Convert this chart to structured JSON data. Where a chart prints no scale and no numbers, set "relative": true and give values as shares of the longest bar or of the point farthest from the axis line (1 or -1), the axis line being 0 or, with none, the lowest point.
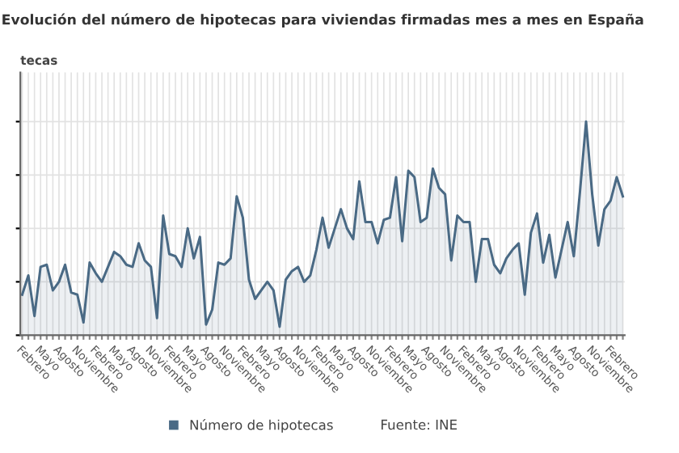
{
  "chart_data": {
    "type": "area",
    "title": "Evolución del número de hipotecas para viviendas firmadas mes a mes en España",
    "ylabel": "tecas",
    "relative": true,
    "grid": true,
    "legend": "bottom",
    "annotations": [
      "Fuente: INE"
    ],
    "categories": [
      "Febrero",
      null,
      null,
      "Mayo",
      null,
      null,
      "Agosto",
      null,
      null,
      "Noviembre",
      null,
      null,
      "Febrero",
      null,
      null,
      "Mayo",
      null,
      null,
      "Agosto",
      null,
      null,
      "Noviembre",
      null,
      null,
      "Febrero",
      null,
      null,
      "Mayo",
      null,
      null,
      "Agosto",
      null,
      null,
      "Noviembre",
      null,
      null,
      "Febrero",
      null,
      null,
      "Mayo",
      null,
      null,
      "Agosto",
      null,
      null,
      "Noviembre",
      null,
      null,
      "Febrero",
      null,
      null,
      "Mayo",
      null,
      null,
      "Agosto",
      null,
      null,
      "Noviembre",
      null,
      null,
      "Febrero",
      null,
      null,
      "Mayo",
      null,
      null,
      "Agosto",
      null,
      null,
      "Noviembre",
      null,
      null,
      "Febrero",
      null,
      null,
      "Mayo",
      null,
      null,
      "Agosto",
      null,
      null,
      "Noviembre",
      null,
      null,
      "Febrero",
      null,
      null,
      "Mayo",
      null,
      null,
      "Agosto",
      null,
      null,
      "Noviembre",
      null,
      null,
      "Febrero",
      null,
      null
    ],
    "series": [
      {
        "name": "Número de hipotecas",
        "color": "#4a6a85",
        "values": [
          0.19,
          0.28,
          0.09,
          0.32,
          0.33,
          0.21,
          0.25,
          0.33,
          0.2,
          0.19,
          0.06,
          0.34,
          0.29,
          0.25,
          0.32,
          0.39,
          0.37,
          0.33,
          0.32,
          0.43,
          0.35,
          0.32,
          0.08,
          0.56,
          0.38,
          0.37,
          0.32,
          0.5,
          0.36,
          0.46,
          0.05,
          0.12,
          0.34,
          0.33,
          0.36,
          0.65,
          0.55,
          0.26,
          0.17,
          0.21,
          0.25,
          0.21,
          0.04,
          0.26,
          0.3,
          0.32,
          0.25,
          0.28,
          0.4,
          0.55,
          0.41,
          0.5,
          0.59,
          0.5,
          0.45,
          0.72,
          0.53,
          0.53,
          0.43,
          0.54,
          0.55,
          0.74,
          0.44,
          0.77,
          0.74,
          0.53,
          0.55,
          0.78,
          0.69,
          0.66,
          0.35,
          0.56,
          0.53,
          0.53,
          0.25,
          0.45,
          0.45,
          0.33,
          0.29,
          0.36,
          0.4,
          0.43,
          0.19,
          0.48,
          0.57,
          0.34,
          0.47,
          0.27,
          0.4,
          0.53,
          0.37,
          0.67,
          1,
          0.66,
          0.42,
          0.59,
          0.63,
          0.74,
          0.65
        ]
      }
    ]
  }
}
